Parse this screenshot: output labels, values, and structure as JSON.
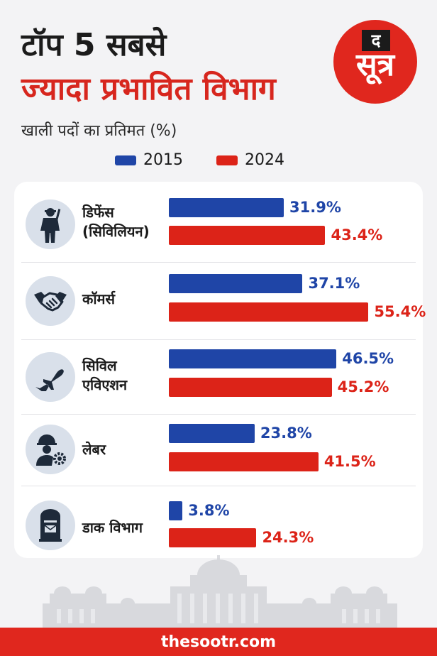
{
  "header": {
    "title_line1": "टॉप 5 सबसे",
    "title_line2": "ज्यादा प्रभावित विभाग",
    "subtitle": "खाली पदों का प्रतिमत (%)"
  },
  "logo": {
    "top_text": "द",
    "main_text": "सूत्र"
  },
  "colors": {
    "series_2015": "#1f45a7",
    "series_2024": "#dc2318",
    "accent": "#e0271e"
  },
  "chart_data": {
    "type": "bar",
    "orientation": "horizontal",
    "title": "टॉप 5 सबसे ज्यादा प्रभावित विभाग",
    "subtitle": "खाली पदों का प्रतिमत (%)",
    "categories": [
      "डिफेंस (सिविलियन)",
      "कॉमर्स",
      "सिविल एविएशन",
      "लेबर",
      "डाक विभाग"
    ],
    "series": [
      {
        "name": "2015",
        "values": [
          31.9,
          37.1,
          46.5,
          23.8,
          3.8
        ],
        "labels": [
          "31.9%",
          "37.1%",
          "46.5%",
          "23.8%",
          "3.8%"
        ]
      },
      {
        "name": "2024",
        "values": [
          43.4,
          55.4,
          45.2,
          41.5,
          24.3
        ],
        "labels": [
          "43.4%",
          "55.4%",
          "45.2%",
          "41.5%",
          "24.3%"
        ]
      }
    ],
    "xlim": [
      0,
      60
    ],
    "legend_position": "top",
    "grid": false
  },
  "rows": [
    {
      "label_line1": "डिफेंस",
      "label_line2": "(सिविलियन)",
      "icon": "soldier-icon"
    },
    {
      "label_line1": "कॉमर्स",
      "label_line2": "",
      "icon": "handshake-icon"
    },
    {
      "label_line1": "सिविल",
      "label_line2": "एविएशन",
      "icon": "airplane-icon"
    },
    {
      "label_line1": "लेबर",
      "label_line2": "",
      "icon": "worker-gear-icon"
    },
    {
      "label_line1": "डाक विभाग",
      "label_line2": "",
      "icon": "postbox-icon"
    }
  ],
  "footer": {
    "website": "thesootr.com"
  }
}
